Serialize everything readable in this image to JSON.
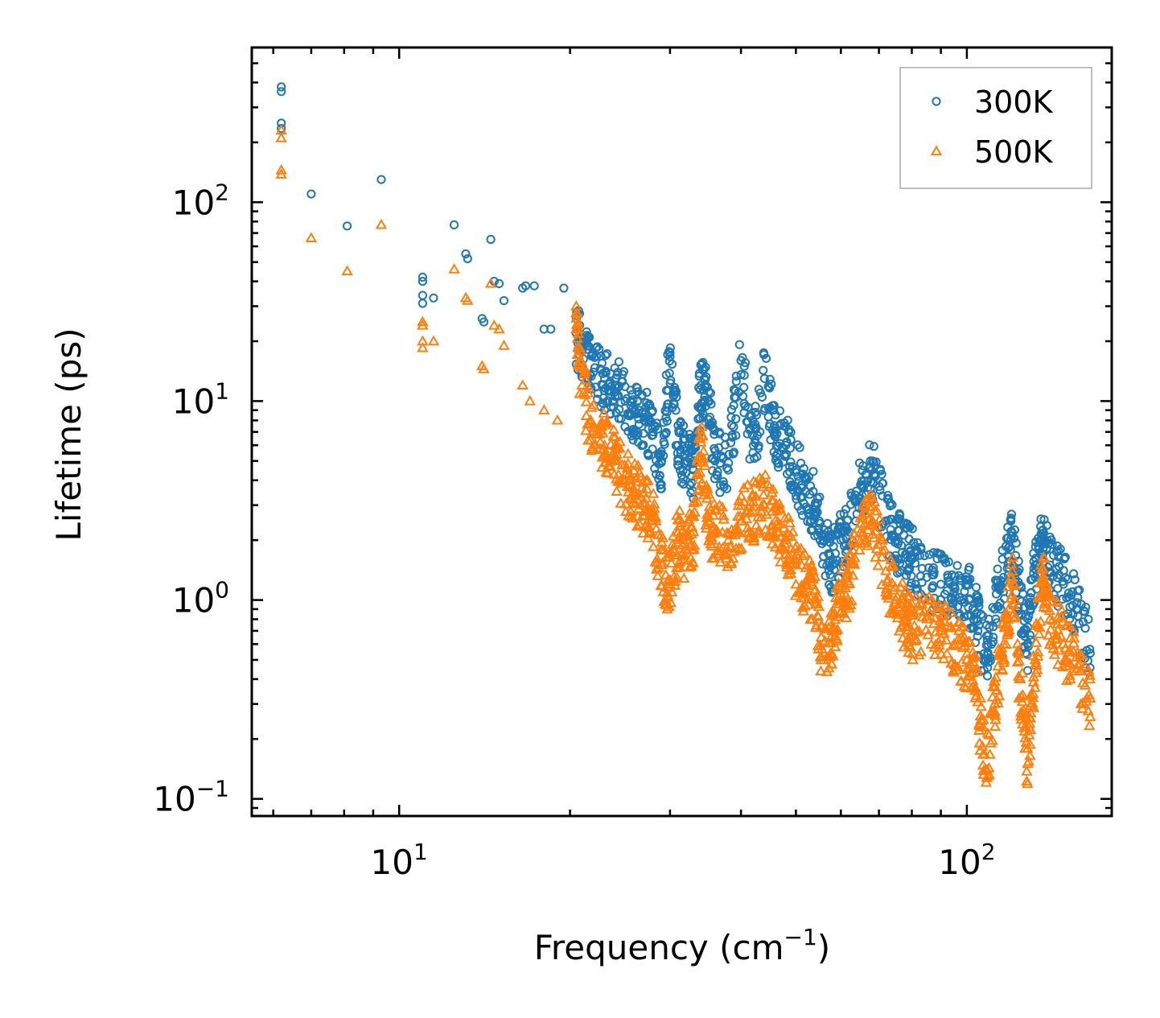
{
  "chart_data": {
    "type": "scatter",
    "title": "",
    "xlabel": "Frequency (cm",
    "xlabel_superscript": "−1",
    "xlabel_suffix": ")",
    "ylabel": "Lifetime (ps)",
    "xscale": "log",
    "yscale": "log",
    "xlim": [
      5.5,
      180
    ],
    "ylim": [
      0.082,
      600
    ],
    "grid": false,
    "legend_position": "top-right",
    "x_ticks": [
      {
        "value": 10,
        "base": "10",
        "exp": "1"
      },
      {
        "value": 100,
        "base": "10",
        "exp": "2"
      }
    ],
    "y_ticks": [
      {
        "value": 0.1,
        "base": "10",
        "exp": "−1"
      },
      {
        "value": 1,
        "base": "10",
        "exp": "0"
      },
      {
        "value": 10,
        "base": "10",
        "exp": "1"
      },
      {
        "value": 100,
        "base": "10",
        "exp": "2"
      }
    ],
    "series": [
      {
        "name": "300K",
        "marker": "circle",
        "color": "#1f77b4",
        "anchors": [
          [
            6.2,
            380
          ],
          [
            6.2,
            360
          ],
          [
            6.2,
            250
          ],
          [
            6.2,
            235
          ],
          [
            7.0,
            110
          ],
          [
            8.1,
            76
          ],
          [
            9.3,
            130
          ],
          [
            11.0,
            42
          ],
          [
            11.0,
            40
          ],
          [
            11.0,
            34
          ],
          [
            11.0,
            31
          ],
          [
            11.5,
            33
          ],
          [
            12.5,
            77
          ],
          [
            13.1,
            55
          ],
          [
            13.2,
            52
          ],
          [
            14.0,
            26
          ],
          [
            14.1,
            25
          ],
          [
            14.5,
            65
          ],
          [
            14.7,
            40
          ],
          [
            15.0,
            39
          ],
          [
            15.3,
            32
          ],
          [
            16.5,
            37
          ],
          [
            16.7,
            38
          ],
          [
            17.3,
            38
          ],
          [
            18.0,
            23
          ],
          [
            18.5,
            23
          ],
          [
            19.5,
            37
          ],
          [
            20.5,
            22
          ],
          [
            21.0,
            18
          ],
          [
            22.0,
            14
          ],
          [
            23.0,
            13
          ],
          [
            24.0,
            12
          ],
          [
            25.0,
            10
          ],
          [
            26.0,
            9
          ],
          [
            27.0,
            8
          ],
          [
            28.0,
            7
          ],
          [
            29.0,
            5
          ],
          [
            30.0,
            17.5
          ],
          [
            31.0,
            6
          ],
          [
            32.0,
            5
          ],
          [
            33.0,
            4.5
          ],
          [
            34.0,
            12
          ],
          [
            35.0,
            10
          ],
          [
            36.0,
            5
          ],
          [
            38.0,
            4.5
          ],
          [
            40.0,
            16
          ],
          [
            42.0,
            5.5
          ],
          [
            44.0,
            13
          ],
          [
            46.0,
            7
          ],
          [
            48.0,
            6
          ],
          [
            50.0,
            4.5
          ],
          [
            52.0,
            3.5
          ],
          [
            54.0,
            3
          ],
          [
            56.0,
            2
          ],
          [
            58.0,
            1.5
          ],
          [
            60.0,
            2
          ],
          [
            62.0,
            2.2
          ],
          [
            65.0,
            3.8
          ],
          [
            68.0,
            4.5
          ],
          [
            72.0,
            2.5
          ],
          [
            75.0,
            2
          ],
          [
            78.0,
            1.7
          ],
          [
            80.0,
            1.6
          ],
          [
            85.0,
            1.3
          ],
          [
            90.0,
            1.2
          ],
          [
            95.0,
            1.1
          ],
          [
            100.0,
            1.2
          ],
          [
            104.0,
            0.8
          ],
          [
            108.0,
            0.5
          ],
          [
            112.0,
            0.9
          ],
          [
            116.0,
            1.3
          ],
          [
            120.0,
            2.1
          ],
          [
            124.0,
            1.0
          ],
          [
            128.0,
            0.6
          ],
          [
            132.0,
            1.5
          ],
          [
            136.0,
            2.1
          ],
          [
            140.0,
            1.5
          ],
          [
            148.0,
            1.2
          ],
          [
            156.0,
            0.9
          ],
          [
            165.0,
            0.54
          ]
        ]
      },
      {
        "name": "500K",
        "marker": "triangle",
        "color": "#ff7f0e",
        "anchors": [
          [
            6.2,
            230
          ],
          [
            6.2,
            210
          ],
          [
            6.2,
            145
          ],
          [
            6.2,
            138
          ],
          [
            7.0,
            66
          ],
          [
            8.1,
            45
          ],
          [
            9.3,
            77
          ],
          [
            11.0,
            25
          ],
          [
            11.0,
            24
          ],
          [
            11.0,
            20
          ],
          [
            11.0,
            18.5
          ],
          [
            11.5,
            20
          ],
          [
            12.5,
            46
          ],
          [
            13.1,
            33
          ],
          [
            13.2,
            32
          ],
          [
            14.0,
            15
          ],
          [
            14.1,
            14.5
          ],
          [
            14.5,
            39
          ],
          [
            14.7,
            24
          ],
          [
            15.0,
            23
          ],
          [
            15.3,
            19
          ],
          [
            16.5,
            12
          ],
          [
            17.0,
            10
          ],
          [
            18.0,
            9
          ],
          [
            19.0,
            8
          ],
          [
            20.5,
            23
          ],
          [
            21.0,
            12
          ],
          [
            22.0,
            7
          ],
          [
            23.0,
            6
          ],
          [
            24.0,
            5
          ],
          [
            25.0,
            4
          ],
          [
            26.0,
            3.5
          ],
          [
            27.0,
            3
          ],
          [
            28.0,
            2.5
          ],
          [
            29.0,
            1.5
          ],
          [
            30.0,
            1.2
          ],
          [
            31.0,
            2
          ],
          [
            32.0,
            1.8
          ],
          [
            33.0,
            2.2
          ],
          [
            34.0,
            6.2
          ],
          [
            35.0,
            2.5
          ],
          [
            36.0,
            2.2
          ],
          [
            38.0,
            2
          ],
          [
            40.0,
            2.5
          ],
          [
            42.0,
            2.8
          ],
          [
            44.0,
            3
          ],
          [
            46.0,
            2.5
          ],
          [
            48.0,
            2
          ],
          [
            50.0,
            1.5
          ],
          [
            52.0,
            1.2
          ],
          [
            54.0,
            1
          ],
          [
            56.0,
            0.5
          ],
          [
            58.0,
            0.7
          ],
          [
            60.0,
            1.0
          ],
          [
            62.0,
            1.2
          ],
          [
            65.0,
            2.2
          ],
          [
            68.0,
            2.5
          ],
          [
            72.0,
            1.4
          ],
          [
            75.0,
            1.0
          ],
          [
            78.0,
            0.8
          ],
          [
            80.0,
            0.7
          ],
          [
            85.0,
            0.8
          ],
          [
            90.0,
            0.7
          ],
          [
            95.0,
            0.6
          ],
          [
            100.0,
            0.5
          ],
          [
            104.0,
            0.35
          ],
          [
            108.0,
            0.14
          ],
          [
            112.0,
            0.3
          ],
          [
            116.0,
            0.6
          ],
          [
            120.0,
            1.3
          ],
          [
            124.0,
            0.4
          ],
          [
            128.0,
            0.15
          ],
          [
            132.0,
            0.5
          ],
          [
            136.0,
            1.3
          ],
          [
            140.0,
            0.8
          ],
          [
            148.0,
            0.6
          ],
          [
            156.0,
            0.45
          ],
          [
            165.0,
            0.32
          ]
        ]
      }
    ]
  }
}
